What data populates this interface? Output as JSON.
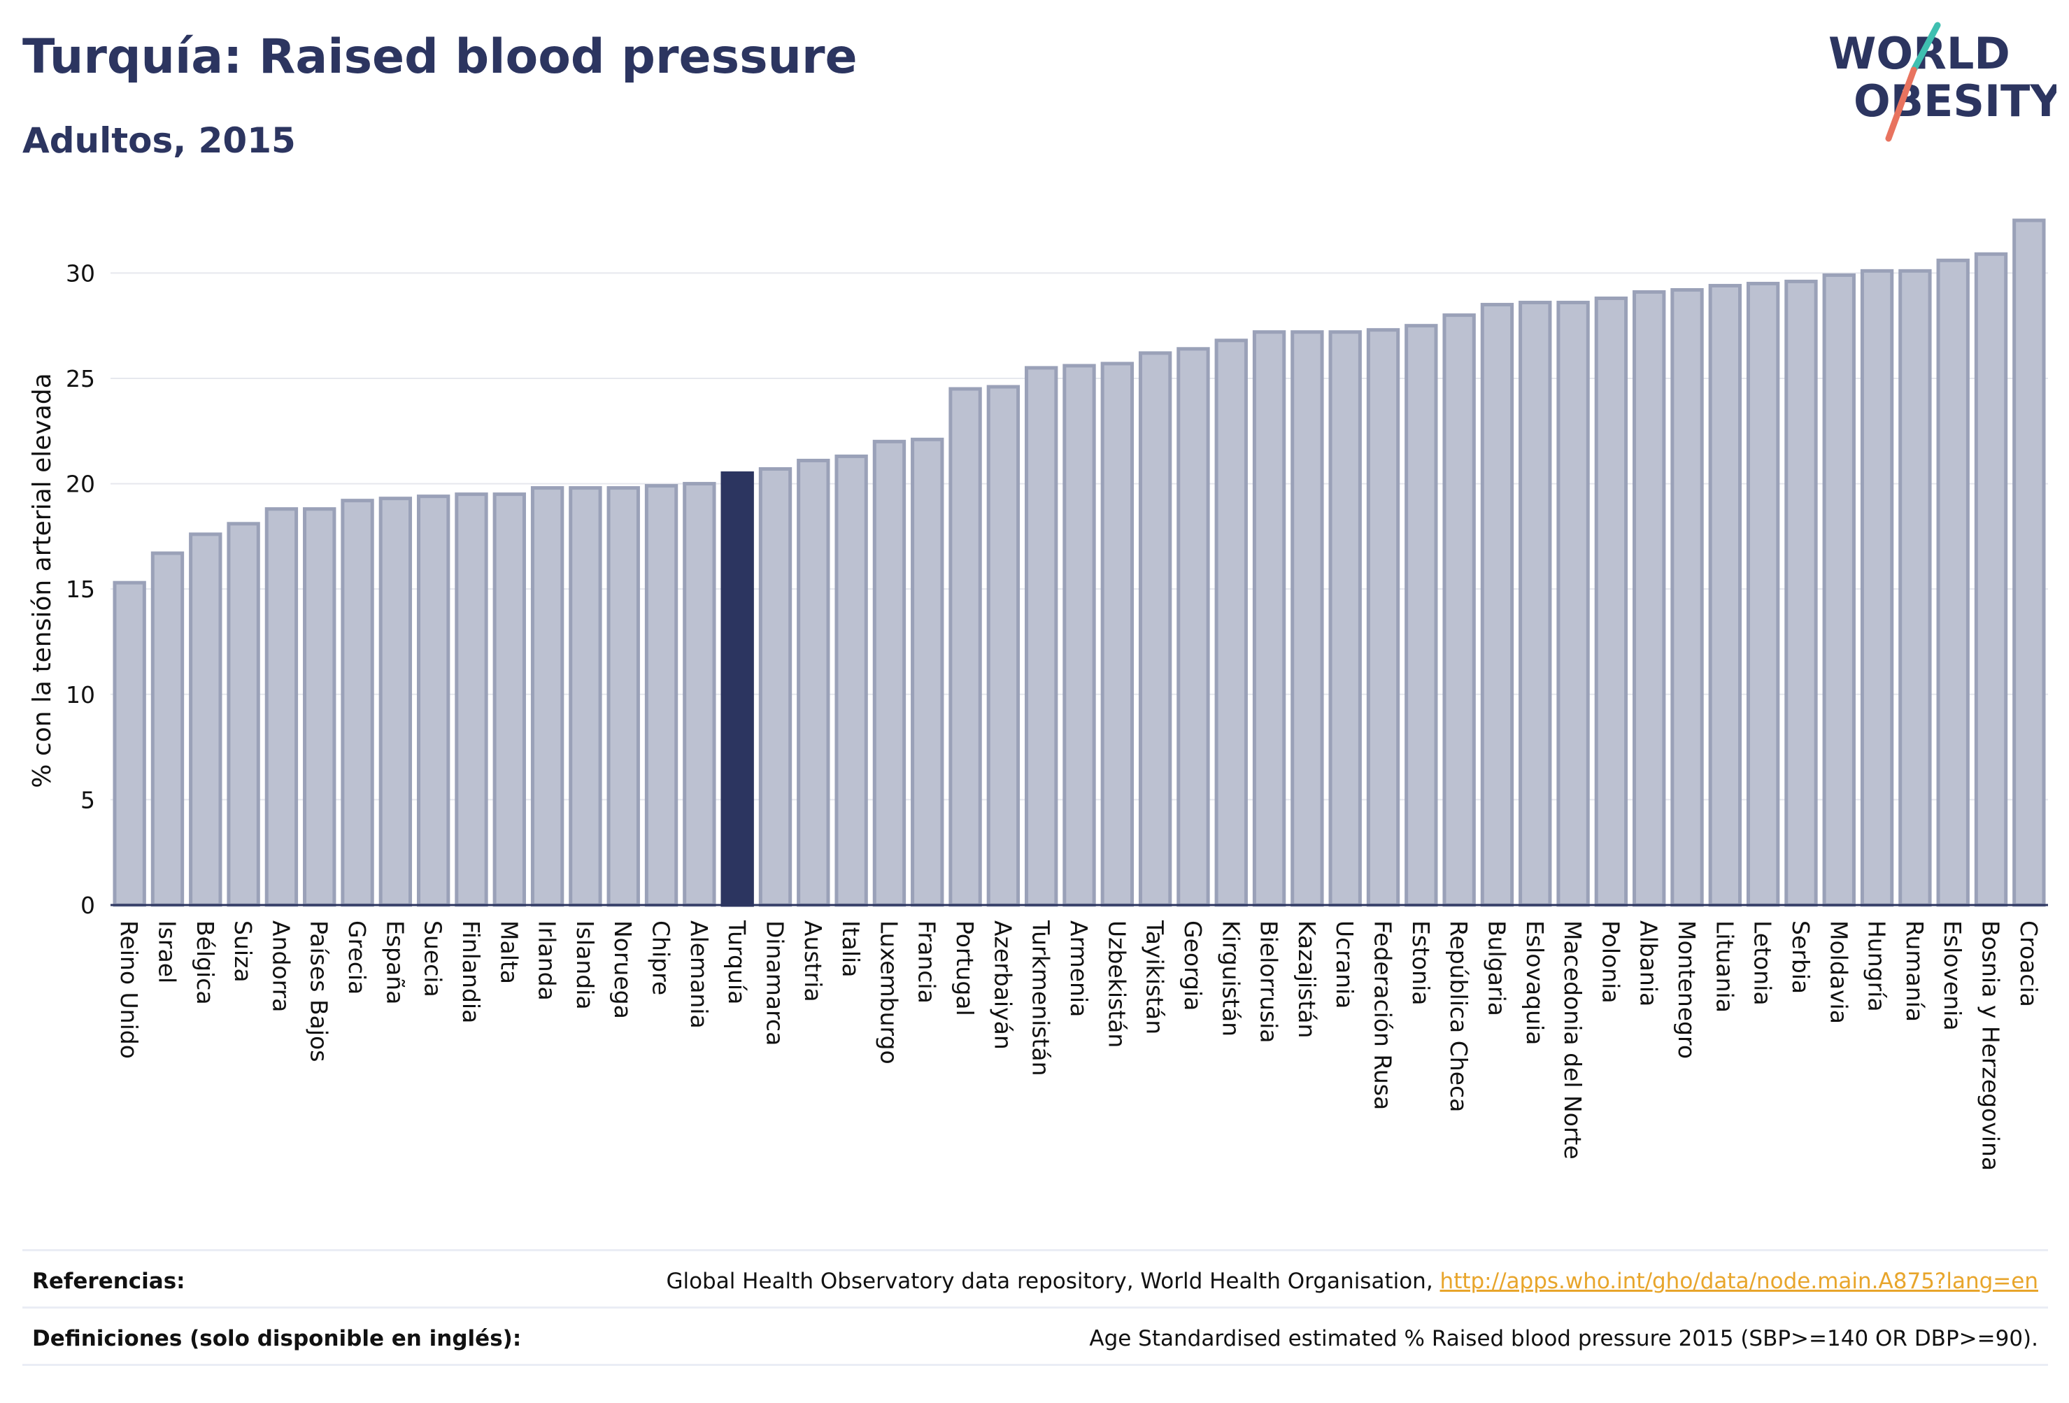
{
  "header": {
    "title": "Turquía: Raised blood pressure",
    "subtitle": "Adultos, 2015"
  },
  "logo": {
    "line1": "WORLD",
    "line2": "OBESITY",
    "colors": {
      "text": "#2c3560",
      "stroke_teal": "#3fbfb0",
      "stroke_coral": "#e8735f"
    }
  },
  "colors": {
    "bar": "#bcc1d1",
    "bar_stroke": "#9aa1b8",
    "highlight": "#2c3560",
    "grid": "#e6e8ee",
    "axis": "#2c3560"
  },
  "chart_data": {
    "type": "bar",
    "ylabel": "% con la tensión arterial elevada",
    "ylim": [
      0,
      33
    ],
    "yticks": [
      0,
      5,
      10,
      15,
      20,
      25,
      30
    ],
    "grid": true,
    "highlight": "Turquía",
    "categories": [
      "Reino Unido",
      "Israel",
      "Bélgica",
      "Suiza",
      "Andorra",
      "Países Bajos",
      "Grecia",
      "España",
      "Suecia",
      "Finlandia",
      "Malta",
      "Irlanda",
      "Islandia",
      "Noruega",
      "Chipre",
      "Alemania",
      "Turquía",
      "Dinamarca",
      "Austria",
      "Italia",
      "Luxemburgo",
      "Francia",
      "Portugal",
      "Azerbaiyán",
      "Turkmenistán",
      "Armenia",
      "Uzbekistán",
      "Tayikistán",
      "Georgia",
      "Kirguistán",
      "Bielorrusia",
      "Kazajistán",
      "Ucrania",
      "Federación Rusa",
      "Estonia",
      "República Checa",
      "Bulgaria",
      "Eslovaquia",
      "Macedonia del Norte",
      "Polonia",
      "Albania",
      "Montenegro",
      "Lituania",
      "Letonia",
      "Serbia",
      "Moldavia",
      "Hungría",
      "Rumanía",
      "Eslovenia",
      "Bosnia y Herzegovina",
      "Croacia"
    ],
    "values": [
      15.3,
      16.7,
      17.6,
      18.1,
      18.8,
      18.8,
      19.2,
      19.3,
      19.4,
      19.5,
      19.5,
      19.8,
      19.8,
      19.8,
      19.9,
      20.0,
      20.5,
      20.7,
      21.1,
      21.3,
      22.0,
      22.1,
      24.5,
      24.6,
      25.5,
      25.6,
      25.7,
      26.2,
      26.4,
      26.8,
      27.2,
      27.2,
      27.2,
      27.3,
      27.5,
      28.0,
      28.5,
      28.6,
      28.6,
      28.8,
      29.1,
      29.2,
      29.4,
      29.5,
      29.6,
      29.9,
      30.1,
      30.1,
      30.6,
      30.9,
      32.5
    ]
  },
  "footer": {
    "references_label": "Referencias:",
    "references_text": "Global Health Observatory data repository, World Health Organisation,",
    "references_link": "http://apps.who.int/gho/data/node.main.A875?lang=en",
    "definitions_label": "Definiciones (solo disponible en inglés):",
    "definitions_text": "Age Standardised estimated % Raised blood pressure 2015 (SBP>=140 OR DBP>=90)."
  }
}
